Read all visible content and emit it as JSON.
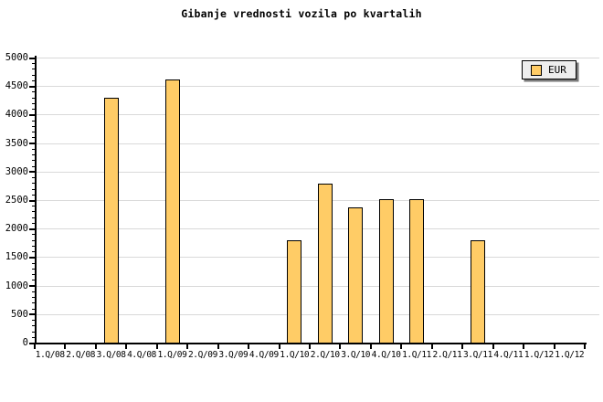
{
  "title": "Gibanje vrednosti vozila po kvartalih",
  "legend": {
    "label": "EUR"
  },
  "colors": {
    "bar_fill": "#FFCC66",
    "bar_border": "#000000",
    "grid": "#D9D9D9",
    "axis": "#000000",
    "legend_bg": "#EEEEEE",
    "legend_shadow": "#7A7A7A",
    "background": "#FFFFFF"
  },
  "chart_data": {
    "type": "bar",
    "title": "Gibanje vrednosti vozila po kvartalih",
    "xlabel": "",
    "ylabel": "",
    "categories": [
      "1.Q/08",
      "2.Q/08",
      "3.Q/08",
      "4.Q/08",
      "1.Q/09",
      "2.Q/09",
      "3.Q/09",
      "4.Q/09",
      "1.Q/10",
      "2.Q/10",
      "3.Q/10",
      "4.Q/10",
      "1.Q/11",
      "2.Q/11",
      "3.Q/11",
      "4.Q/11",
      "1.Q/12",
      "1.Q/12"
    ],
    "series": [
      {
        "name": "EUR",
        "values": [
          null,
          null,
          4300,
          null,
          4610,
          null,
          null,
          null,
          1790,
          2790,
          2370,
          2520,
          2520,
          null,
          1790,
          null,
          null,
          null
        ]
      }
    ],
    "ylim": [
      0,
      5000
    ],
    "y_major_step": 500,
    "y_minor_step": 100,
    "grid": true,
    "legend_position": "top-right"
  }
}
